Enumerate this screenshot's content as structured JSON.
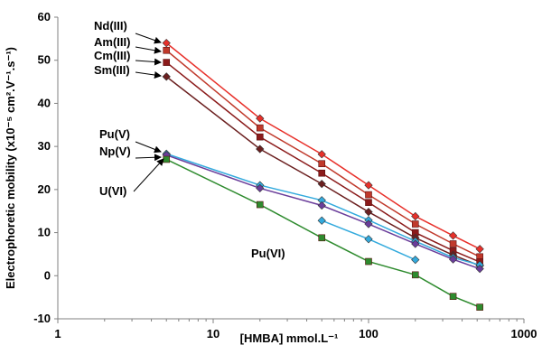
{
  "chart_data": {
    "type": "scatter",
    "xscale": "log",
    "xlim": [
      1,
      1000
    ],
    "ylim": [
      -10,
      60
    ],
    "x_ticks": [
      "1",
      "10",
      "100",
      "1000"
    ],
    "y_ticks": [
      "-10",
      "0",
      "10",
      "20",
      "30",
      "40",
      "50",
      "60"
    ],
    "xlabel": "[HMBA] mmol.L⁻¹",
    "ylabel": "Electrophoretic mobility (x10⁻⁵ cm².V⁻¹.s⁻¹)",
    "grid": false,
    "series": [
      {
        "name": "Nd(III)",
        "marker": "diamond",
        "color": "#e8302a",
        "points": [
          [
            5,
            54
          ],
          [
            20,
            36.5
          ],
          [
            50,
            28.2
          ],
          [
            100,
            21
          ],
          [
            200,
            13.8
          ],
          [
            350,
            9.3
          ],
          [
            520,
            6.2
          ]
        ]
      },
      {
        "name": "Am(III)",
        "marker": "square",
        "color": "#c0392b",
        "points": [
          [
            5,
            52.3
          ],
          [
            20,
            34.3
          ],
          [
            50,
            26
          ],
          [
            100,
            18.8
          ],
          [
            200,
            12
          ],
          [
            350,
            7.4
          ],
          [
            520,
            4.4
          ]
        ]
      },
      {
        "name": "Cm(III)",
        "marker": "square",
        "color": "#8b1a1a",
        "points": [
          [
            5,
            49.5
          ],
          [
            20,
            32.2
          ],
          [
            50,
            23.8
          ],
          [
            100,
            17
          ],
          [
            200,
            10
          ],
          [
            350,
            5.8
          ],
          [
            520,
            3.2
          ]
        ]
      },
      {
        "name": "Sm(III)",
        "marker": "diamond",
        "color": "#6b1f1f",
        "points": [
          [
            5,
            46.2
          ],
          [
            20,
            29.4
          ],
          [
            50,
            21.3
          ],
          [
            100,
            14.8
          ],
          [
            200,
            8.8
          ],
          [
            350,
            4.8
          ],
          [
            520,
            2.3
          ]
        ]
      },
      {
        "name": "Pu(V)",
        "marker": "diamond",
        "color": "#33aadd",
        "points": [
          [
            5,
            28.3
          ],
          [
            20,
            21
          ],
          [
            50,
            17.5
          ],
          [
            100,
            12.9
          ],
          [
            200,
            8
          ],
          [
            350,
            4.2
          ],
          [
            520,
            2.5
          ]
        ]
      },
      {
        "name": "Np(V)",
        "marker": "diamond",
        "color": "#6a3d9a",
        "points": [
          [
            5,
            28
          ],
          [
            20,
            20.3
          ],
          [
            50,
            16.3
          ],
          [
            100,
            12
          ],
          [
            200,
            7.4
          ],
          [
            350,
            3.8
          ],
          [
            520,
            1.6
          ]
        ]
      },
      {
        "name": "U(VI)",
        "marker": "square",
        "color": "#2e8b2e",
        "points": [
          [
            5,
            27
          ],
          [
            20,
            16.5
          ],
          [
            50,
            8.8
          ],
          [
            100,
            3.3
          ],
          [
            200,
            0.2
          ],
          [
            350,
            -4.8
          ],
          [
            520,
            -7.3
          ]
        ]
      },
      {
        "name": "Pu(VI)",
        "marker": "diamond",
        "color": "#33aadd",
        "points": [
          [
            50,
            12.8
          ],
          [
            100,
            8.5
          ],
          [
            200,
            3.7
          ]
        ]
      }
    ]
  }
}
